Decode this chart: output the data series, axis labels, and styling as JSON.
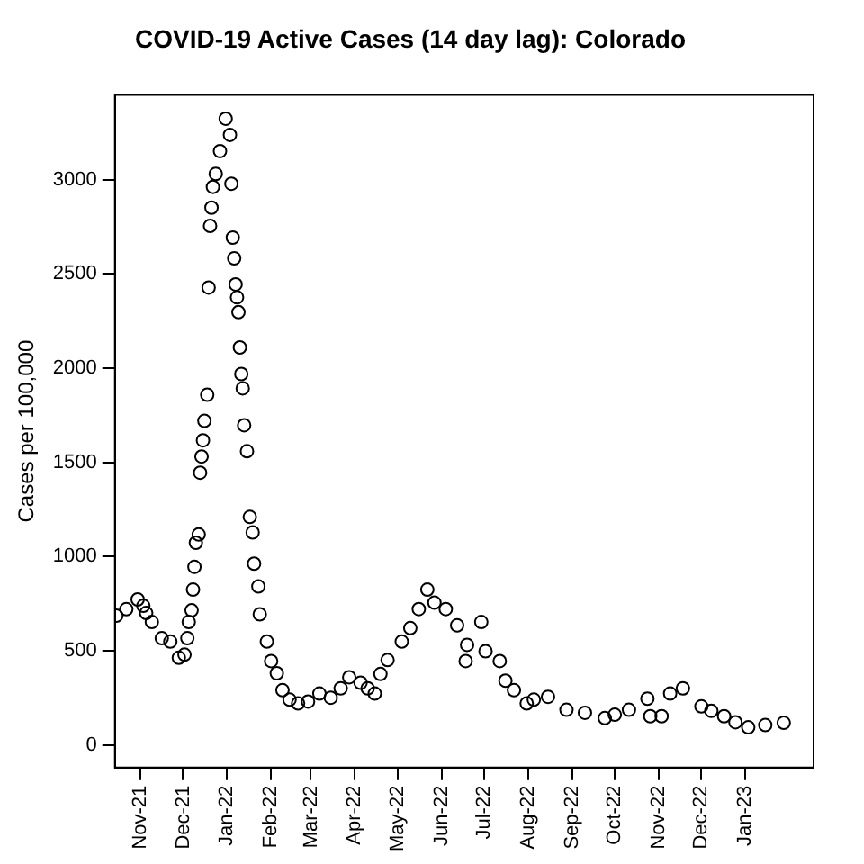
{
  "chart_data": {
    "type": "scatter",
    "title": "COVID-19 Active Cases (14 day lag): Colorado",
    "ylabel": "Cases per 100,000",
    "marker": "circle",
    "grid": false,
    "legend": false,
    "x": [
      "2021-10-15",
      "2021-10-22",
      "2021-10-30",
      "2021-11-03",
      "2021-11-05",
      "2021-11-09",
      "2021-11-16",
      "2021-11-22",
      "2021-11-28",
      "2021-12-02",
      "2021-12-04",
      "2021-12-05",
      "2021-12-07",
      "2021-12-08",
      "2021-12-09",
      "2021-12-10",
      "2021-12-12",
      "2021-12-13",
      "2021-12-14",
      "2021-12-15",
      "2021-12-16",
      "2021-12-18",
      "2021-12-19",
      "2021-12-20",
      "2021-12-21",
      "2021-12-22",
      "2021-12-24",
      "2021-12-27",
      "2021-12-31",
      "2022-01-03",
      "2022-01-04",
      "2022-01-05",
      "2022-01-06",
      "2022-01-07",
      "2022-01-08",
      "2022-01-09",
      "2022-01-10",
      "2022-01-11",
      "2022-01-12",
      "2022-01-13",
      "2022-01-15",
      "2022-01-17",
      "2022-01-19",
      "2022-01-20",
      "2022-01-23",
      "2022-01-24",
      "2022-01-29",
      "2022-02-01",
      "2022-02-05",
      "2022-02-09",
      "2022-02-14",
      "2022-02-20",
      "2022-02-27",
      "2022-03-07",
      "2022-03-15",
      "2022-03-22",
      "2022-03-28",
      "2022-04-05",
      "2022-04-10",
      "2022-04-15",
      "2022-04-19",
      "2022-04-24",
      "2022-05-04",
      "2022-05-10",
      "2022-05-16",
      "2022-05-22",
      "2022-05-27",
      "2022-06-04",
      "2022-06-12",
      "2022-06-18",
      "2022-06-19",
      "2022-06-29",
      "2022-07-02",
      "2022-07-12",
      "2022-07-16",
      "2022-07-22",
      "2022-07-31",
      "2022-08-05",
      "2022-08-15",
      "2022-08-28",
      "2022-09-10",
      "2022-09-24",
      "2022-10-01",
      "2022-10-11",
      "2022-10-24",
      "2022-10-26",
      "2022-11-03",
      "2022-11-09",
      "2022-11-18",
      "2022-12-01",
      "2022-12-08",
      "2022-12-17",
      "2022-12-25",
      "2023-01-03",
      "2023-01-15",
      "2023-01-28"
    ],
    "values": [
      686,
      720,
      772,
      738,
      700,
      652,
      566,
      548,
      462,
      479,
      566,
      652,
      714,
      824,
      945,
      1073,
      1117,
      1445,
      1531,
      1617,
      1720,
      1859,
      2428,
      2755,
      2852,
      2962,
      3031,
      3152,
      3324,
      3238,
      2979,
      2693,
      2583,
      2445,
      2376,
      2297,
      2110,
      1969,
      1893,
      1697,
      1559,
      1210,
      1128,
      962,
      841,
      693,
      548,
      445,
      380,
      290,
      240,
      220,
      230,
      272,
      250,
      300,
      359,
      330,
      300,
      272,
      376,
      450,
      548,
      620,
      721,
      824,
      755,
      721,
      634,
      445,
      531,
      652,
      497,
      445,
      341,
      290,
      220,
      240,
      255,
      186,
      170,
      142,
      160,
      186,
      245,
      152,
      152,
      272,
      300,
      204,
      180,
      152,
      120,
      93,
      105,
      117
    ],
    "color": "#000000",
    "xlim": [
      "2021-10-14",
      "2023-02-18"
    ],
    "xticks": [
      {
        "value": "2021-11-01",
        "label": "Nov-21"
      },
      {
        "value": "2021-12-01",
        "label": "Dec-21"
      },
      {
        "value": "2022-01-01",
        "label": "Jan-22"
      },
      {
        "value": "2022-02-01",
        "label": "Feb-22"
      },
      {
        "value": "2022-03-01",
        "label": "Mar-22"
      },
      {
        "value": "2022-04-01",
        "label": "Apr-22"
      },
      {
        "value": "2022-05-01",
        "label": "May-22"
      },
      {
        "value": "2022-06-01",
        "label": "Jun-22"
      },
      {
        "value": "2022-07-01",
        "label": "Jul-22"
      },
      {
        "value": "2022-08-01",
        "label": "Aug-22"
      },
      {
        "value": "2022-09-01",
        "label": "Sep-22"
      },
      {
        "value": "2022-10-01",
        "label": "Oct-22"
      },
      {
        "value": "2022-11-01",
        "label": "Nov-22"
      },
      {
        "value": "2022-12-01",
        "label": "Dec-22"
      },
      {
        "value": "2023-01-01",
        "label": "Jan-23"
      }
    ],
    "ylim": [
      -120,
      3450
    ],
    "yticks": [
      0,
      500,
      1000,
      1500,
      2000,
      2500,
      3000
    ]
  }
}
